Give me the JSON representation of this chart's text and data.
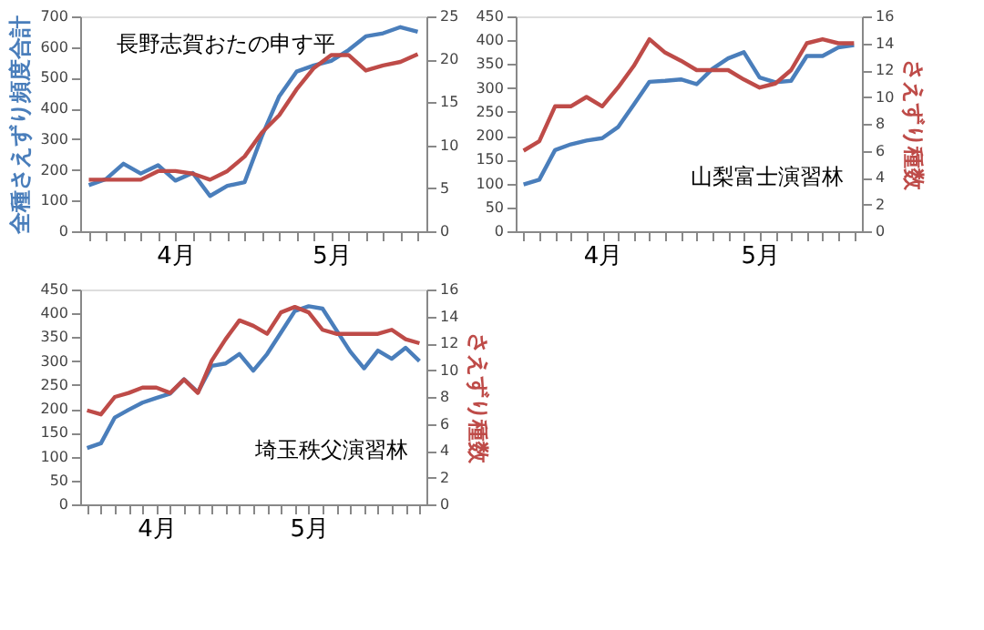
{
  "chart_data": [
    {
      "type": "line",
      "title": "長野志賀おたの申す平",
      "ylabel": "全種さえずり頻度合計",
      "marker": "none",
      "line_style": "solid",
      "grid": false,
      "categories": [
        null,
        null,
        null,
        null,
        null,
        "4月",
        null,
        null,
        null,
        null,
        null,
        null,
        null,
        null,
        "5月",
        null,
        null,
        null,
        null,
        null
      ],
      "ylim": [
        0,
        700
      ],
      "yticks": [
        0,
        100,
        200,
        300,
        400,
        500,
        600,
        700
      ],
      "y2lim": [
        0,
        25
      ],
      "y2ticks": [
        0,
        5,
        10,
        15,
        20,
        25
      ],
      "series": [
        {
          "color": "#4a7ebb",
          "values": [
            150,
            170,
            220,
            188,
            215,
            165,
            190,
            115,
            148,
            160,
            310,
            440,
            520,
            540,
            555,
            590,
            635,
            645,
            665,
            650
          ]
        },
        {
          "color": "#be4b48",
          "axis": "y2",
          "values": [
            6,
            6,
            6,
            6,
            7,
            7,
            6.7,
            6,
            7,
            8.7,
            11.5,
            13.5,
            16.5,
            19,
            20.5,
            20.5,
            18.7,
            19.3,
            19.7,
            20.6
          ]
        }
      ]
    },
    {
      "type": "line",
      "title": "山梨富士演習林",
      "y2label": "さえずり種数",
      "marker": "none",
      "line_style": "solid",
      "grid": false,
      "categories": [
        null,
        null,
        null,
        null,
        null,
        "4月",
        null,
        null,
        null,
        null,
        null,
        null,
        null,
        null,
        null,
        "5月",
        null,
        null,
        null,
        null,
        null,
        null
      ],
      "ylim": [
        0,
        450
      ],
      "yticks": [
        0,
        50,
        100,
        150,
        200,
        250,
        300,
        350,
        400,
        450
      ],
      "y2lim": [
        0,
        16
      ],
      "y2ticks": [
        0,
        2,
        4,
        6,
        8,
        10,
        12,
        14,
        16
      ],
      "series": [
        {
          "color": "#4a7ebb",
          "values": [
            98,
            108,
            170,
            182,
            190,
            195,
            218,
            265,
            313,
            315,
            318,
            308,
            340,
            362,
            375,
            322,
            312,
            315,
            367,
            367,
            385,
            390
          ]
        },
        {
          "color": "#be4b48",
          "axis": "y2",
          "values": [
            6,
            6.7,
            9.3,
            9.3,
            10,
            9.3,
            10.7,
            12.3,
            14.3,
            13.3,
            12.7,
            12,
            12,
            12,
            11.3,
            10.7,
            11,
            12,
            14,
            14.3,
            14,
            14
          ]
        }
      ]
    },
    {
      "type": "line",
      "title": "埼玉秩父演習林",
      "y2label": "さえずり種数",
      "marker": "none",
      "line_style": "solid",
      "grid": false,
      "categories": [
        null,
        null,
        null,
        null,
        null,
        "4月",
        null,
        null,
        null,
        null,
        null,
        null,
        null,
        null,
        null,
        null,
        "5月",
        null,
        null,
        null,
        null,
        null,
        null,
        null,
        null
      ],
      "ylim": [
        0,
        450
      ],
      "yticks": [
        0,
        50,
        100,
        150,
        200,
        250,
        300,
        350,
        400,
        450
      ],
      "y2lim": [
        0,
        16
      ],
      "y2ticks": [
        0,
        2,
        4,
        6,
        8,
        10,
        12,
        14,
        16
      ],
      "series": [
        {
          "color": "#4a7ebb",
          "values": [
            118,
            128,
            182,
            198,
            213,
            223,
            232,
            262,
            235,
            290,
            295,
            315,
            280,
            315,
            360,
            405,
            415,
            410,
            365,
            320,
            285,
            322,
            305,
            328,
            300
          ]
        },
        {
          "color": "#be4b48",
          "axis": "y2",
          "values": [
            7,
            6.7,
            8,
            8.3,
            8.7,
            8.7,
            8.3,
            9.3,
            8.3,
            10.7,
            12.3,
            13.7,
            13.3,
            12.7,
            14.3,
            14.7,
            14.3,
            13,
            12.7,
            12.7,
            12.7,
            12.7,
            13,
            12.3,
            12
          ]
        }
      ]
    }
  ]
}
